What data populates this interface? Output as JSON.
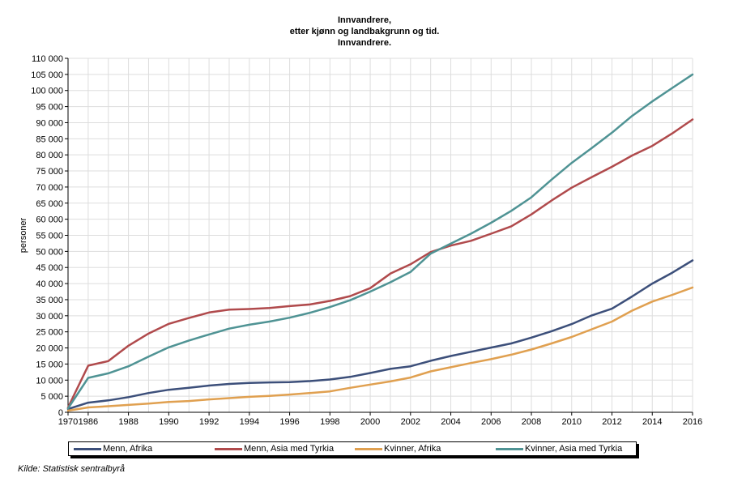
{
  "source": "Kilde: Statistisk sentralbyrå",
  "chart_data": {
    "type": "line",
    "title": [
      "Innvandrere,",
      "etter kjønn og landbakgrunn og tid.",
      "Innvandrere."
    ],
    "ylabel": "personer",
    "xlabel": "",
    "ylim": [
      0,
      110000
    ],
    "yticks": [
      "0",
      "5 000",
      "10 000",
      "15 000",
      "20 000",
      "25 000",
      "30 000",
      "35 000",
      "40 000",
      "45 000",
      "50 000",
      "55 000",
      "60 000",
      "65 000",
      "70 000",
      "75 000",
      "80 000",
      "85 000",
      "90 000",
      "95 000",
      "100 000",
      "105 000",
      "110 000"
    ],
    "xticks": [
      "1970",
      "1986",
      "1988",
      "1990",
      "1992",
      "1994",
      "1996",
      "1998",
      "2000",
      "2002",
      "2004",
      "2006",
      "2008",
      "2010",
      "2012",
      "2014",
      "2016"
    ],
    "grid": true,
    "legend_position": "bottom",
    "x": [
      "1970",
      "1986",
      "1987",
      "1988",
      "1989",
      "1990",
      "1991",
      "1992",
      "1993",
      "1994",
      "1995",
      "1996",
      "1997",
      "1998",
      "1999",
      "2000",
      "2001",
      "2002",
      "2003",
      "2004",
      "2005",
      "2006",
      "2007",
      "2008",
      "2009",
      "2010",
      "2011",
      "2012",
      "2013",
      "2014",
      "2015",
      "2016"
    ],
    "series": [
      {
        "name": "Menn, Afrika",
        "color": "#3c4f7a",
        "values": [
          1000,
          3000,
          3700,
          4700,
          6000,
          7000,
          7600,
          8300,
          8800,
          9100,
          9300,
          9400,
          9700,
          10200,
          11000,
          12200,
          13500,
          14300,
          16000,
          17500,
          18800,
          20100,
          21400,
          23200,
          25200,
          27400,
          30100,
          32200,
          36000,
          40000,
          43400,
          47200
        ]
      },
      {
        "name": "Menn, Asia med Tyrkia",
        "color": "#b04a4c",
        "values": [
          1500,
          14500,
          15900,
          20700,
          24500,
          27500,
          29300,
          31000,
          31900,
          32100,
          32400,
          33000,
          33500,
          34600,
          36100,
          38600,
          43100,
          46000,
          49800,
          51800,
          53300,
          55500,
          57800,
          61500,
          65800,
          69800,
          73100,
          76300,
          79800,
          82800,
          86700,
          91000
        ]
      },
      {
        "name": "Kvinner, Afrika",
        "color": "#e0a050",
        "values": [
          500,
          1500,
          1900,
          2300,
          2700,
          3200,
          3500,
          4000,
          4400,
          4800,
          5100,
          5500,
          6000,
          6500,
          7600,
          8600,
          9600,
          10800,
          12700,
          14000,
          15300,
          16500,
          17900,
          19500,
          21400,
          23400,
          25800,
          28200,
          31600,
          34400,
          36500,
          38800
        ]
      },
      {
        "name": "Kvinner, Asia med Tyrkia",
        "color": "#4f9394",
        "values": [
          1200,
          10700,
          12100,
          14300,
          17300,
          20200,
          22300,
          24200,
          26000,
          27200,
          28200,
          29400,
          30900,
          32700,
          34800,
          37500,
          40400,
          43600,
          49300,
          52400,
          55500,
          58900,
          62600,
          66800,
          72300,
          77500,
          82100,
          86900,
          92100,
          96600,
          100800,
          105000
        ]
      }
    ]
  }
}
